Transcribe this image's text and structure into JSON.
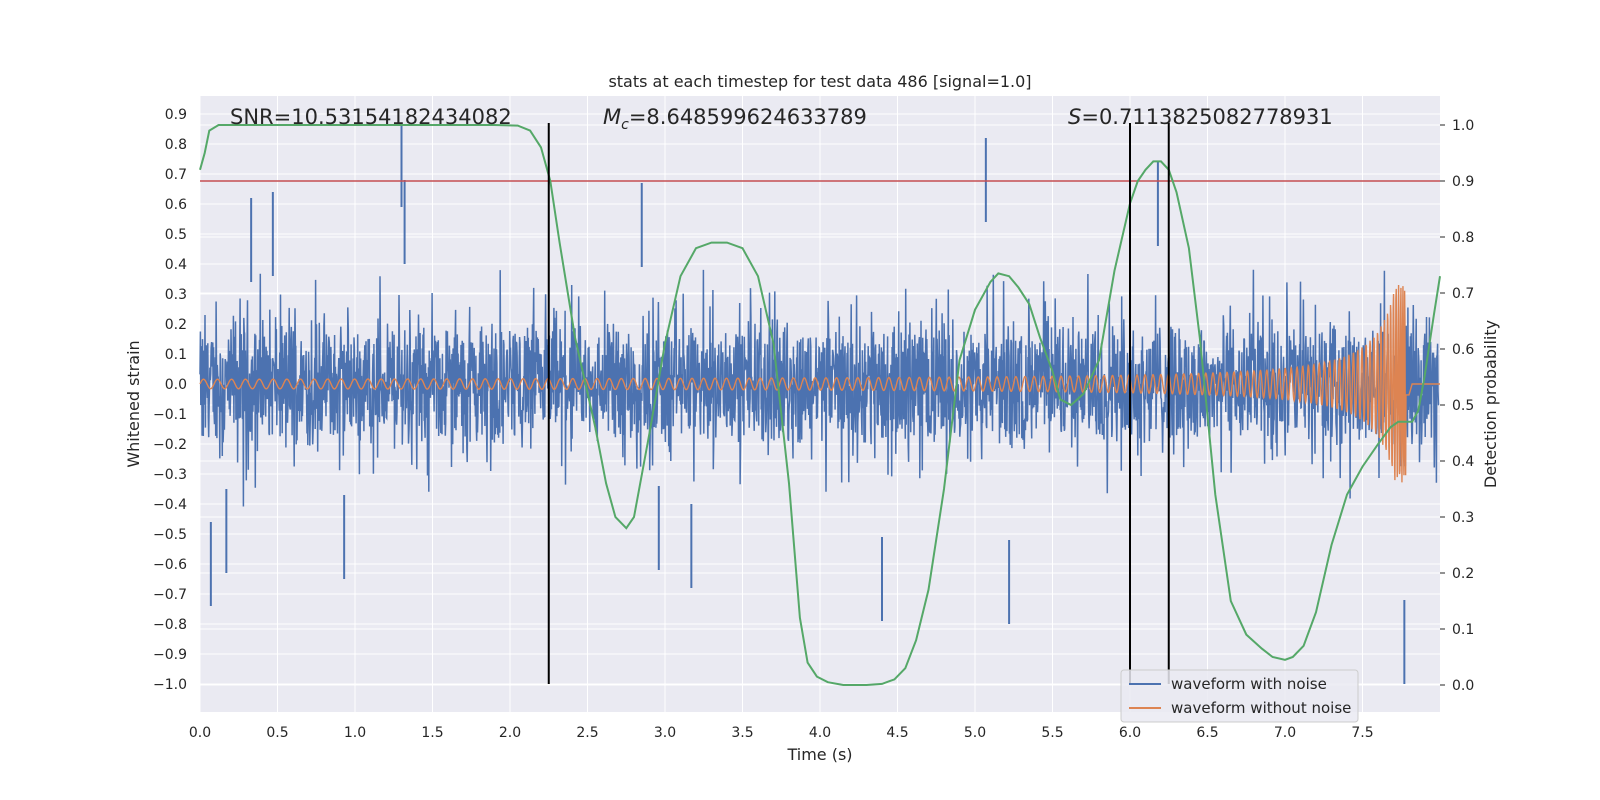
{
  "chart_data": {
    "type": "line",
    "title": "stats at each timestep for test data 486 [signal=1.0]",
    "xlabel": "Time (s)",
    "ylabel": "Whitened strain",
    "y2label": "Detection probability",
    "xlim": [
      0.0,
      8.0
    ],
    "ylim": [
      -1.09,
      0.95
    ],
    "y2lim": [
      -0.05,
      1.05
    ],
    "grid": true,
    "legend_position": "lower-right",
    "x_ticks": [
      "0.0",
      "0.5",
      "1.0",
      "1.5",
      "2.0",
      "2.5",
      "3.0",
      "3.5",
      "4.0",
      "4.5",
      "5.0",
      "5.5",
      "6.0",
      "6.5",
      "7.0",
      "7.5"
    ],
    "y_ticks": [
      "0.9",
      "0.8",
      "0.7",
      "0.6",
      "0.5",
      "0.4",
      "0.3",
      "0.2",
      "0.1",
      "0.0",
      "−0.1",
      "−0.2",
      "−0.3",
      "−0.4",
      "−0.5",
      "−0.6",
      "−0.7",
      "−0.8",
      "−0.9",
      "−1.0"
    ],
    "y2_ticks": [
      "1.0",
      "0.9",
      "0.8",
      "0.7",
      "0.6",
      "0.5",
      "0.4",
      "0.3",
      "0.2",
      "0.1",
      "0.0"
    ],
    "annotations": {
      "snr": "SNR=10.53154182434082",
      "mc_symbol": "M",
      "mc_sub": "c",
      "mc_value": "=8.648599624633789",
      "s_symbol": "S",
      "s_value": "=0.7113825082778931"
    },
    "threshold_line": {
      "y2": 0.9,
      "color": "#c44e52"
    },
    "vertical_lines": {
      "x": [
        2.25,
        6.0,
        6.25
      ],
      "y_from": -1.0,
      "y_to": 0.87,
      "color": "#000000"
    },
    "series": [
      {
        "name": "waveform with noise",
        "color": "#4c72b0",
        "kind": "noise",
        "amplitude_typical": 0.3,
        "peaks": [
          {
            "x": 0.07,
            "y": -0.74
          },
          {
            "x": 0.17,
            "y": -0.63
          },
          {
            "x": 0.33,
            "y": 0.62
          },
          {
            "x": 0.47,
            "y": 0.64
          },
          {
            "x": 0.93,
            "y": -0.65
          },
          {
            "x": 1.3,
            "y": 0.87
          },
          {
            "x": 1.32,
            "y": 0.68
          },
          {
            "x": 2.85,
            "y": 0.67
          },
          {
            "x": 2.96,
            "y": -0.62
          },
          {
            "x": 3.17,
            "y": -0.68
          },
          {
            "x": 4.4,
            "y": -0.79
          },
          {
            "x": 5.07,
            "y": 0.82
          },
          {
            "x": 5.22,
            "y": -0.8
          },
          {
            "x": 6.18,
            "y": 0.74
          },
          {
            "x": 7.77,
            "y": -1.0
          }
        ]
      },
      {
        "name": "waveform without noise",
        "color": "#dd8452",
        "kind": "chirp",
        "end_time": 7.8,
        "base_amplitude": 0.015,
        "peak_amplitude": 0.33
      },
      {
        "name": "Detection probability",
        "color": "#55a868",
        "axis": "right",
        "x": [
          0.0,
          0.03,
          0.06,
          0.12,
          0.2,
          0.5,
          1.0,
          1.5,
          1.9,
          2.05,
          2.13,
          2.2,
          2.26,
          2.32,
          2.42,
          2.55,
          2.62,
          2.68,
          2.75,
          2.8,
          2.9,
          3.0,
          3.1,
          3.2,
          3.3,
          3.4,
          3.5,
          3.6,
          3.7,
          3.8,
          3.87,
          3.92,
          3.98,
          4.05,
          4.15,
          4.3,
          4.4,
          4.48,
          4.55,
          4.62,
          4.7,
          4.8,
          4.9,
          5.0,
          5.1,
          5.15,
          5.22,
          5.28,
          5.35,
          5.42,
          5.5,
          5.55,
          5.62,
          5.7,
          5.8,
          5.9,
          6.0,
          6.05,
          6.1,
          6.15,
          6.2,
          6.25,
          6.3,
          6.38,
          6.45,
          6.55,
          6.65,
          6.75,
          6.85,
          6.92,
          7.0,
          7.05,
          7.12,
          7.2,
          7.3,
          7.4,
          7.5,
          7.6,
          7.68,
          7.73,
          7.78,
          7.82,
          7.86,
          7.9,
          7.96,
          8.0
        ],
        "values": [
          0.92,
          0.95,
          0.99,
          1.0,
          1.0,
          1.0,
          1.0,
          1.0,
          1.0,
          0.999,
          0.99,
          0.96,
          0.9,
          0.79,
          0.62,
          0.46,
          0.36,
          0.3,
          0.28,
          0.3,
          0.45,
          0.61,
          0.73,
          0.78,
          0.79,
          0.79,
          0.78,
          0.73,
          0.61,
          0.36,
          0.12,
          0.04,
          0.015,
          0.005,
          0.0,
          0.0,
          0.002,
          0.01,
          0.03,
          0.08,
          0.17,
          0.35,
          0.58,
          0.67,
          0.72,
          0.735,
          0.73,
          0.71,
          0.68,
          0.62,
          0.56,
          0.51,
          0.5,
          0.52,
          0.58,
          0.74,
          0.86,
          0.9,
          0.92,
          0.935,
          0.935,
          0.92,
          0.88,
          0.78,
          0.62,
          0.34,
          0.15,
          0.09,
          0.065,
          0.05,
          0.045,
          0.05,
          0.07,
          0.13,
          0.25,
          0.34,
          0.39,
          0.43,
          0.46,
          0.47,
          0.47,
          0.47,
          0.49,
          0.55,
          0.66,
          0.73
        ]
      }
    ]
  }
}
